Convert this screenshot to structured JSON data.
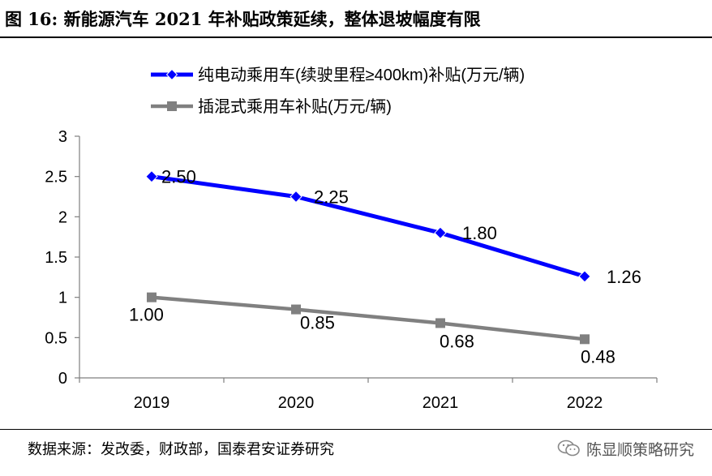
{
  "header": {
    "title": "图 16: 新能源汽车 2021 年补贴政策延续，整体退坡幅度有限"
  },
  "footer": {
    "source": "数据来源：发改委，财政部，国泰君安证券研究",
    "watermark_text": "陈显顺策略研究",
    "watermark_icon": "wechat-icon"
  },
  "colors": {
    "series_ev": "#0000FF",
    "series_phev": "#808080",
    "axis": "#7f7f7f",
    "text": "#000000"
  },
  "chart_data": {
    "type": "line",
    "categories": [
      "2019",
      "2020",
      "2021",
      "2022"
    ],
    "series": [
      {
        "name": "纯电动乘用车(续驶里程≥400km)补贴(万元/辆)",
        "values": [
          2.5,
          2.25,
          1.8,
          1.26
        ],
        "labels": [
          "2.50",
          "2.25",
          "1.80",
          "1.26"
        ],
        "marker": "diamond",
        "color": "#0000FF"
      },
      {
        "name": "插混式乘用车补贴(万元/辆)",
        "values": [
          1.0,
          0.85,
          0.68,
          0.48
        ],
        "labels": [
          "1.00",
          "0.85",
          "0.68",
          "0.48"
        ],
        "marker": "square",
        "color": "#808080"
      }
    ],
    "yticks": [
      "0",
      "0.5",
      "1",
      "1.5",
      "2",
      "2.5",
      "3"
    ],
    "ylim": [
      0,
      3
    ],
    "legend_position": "top",
    "grid": false
  }
}
